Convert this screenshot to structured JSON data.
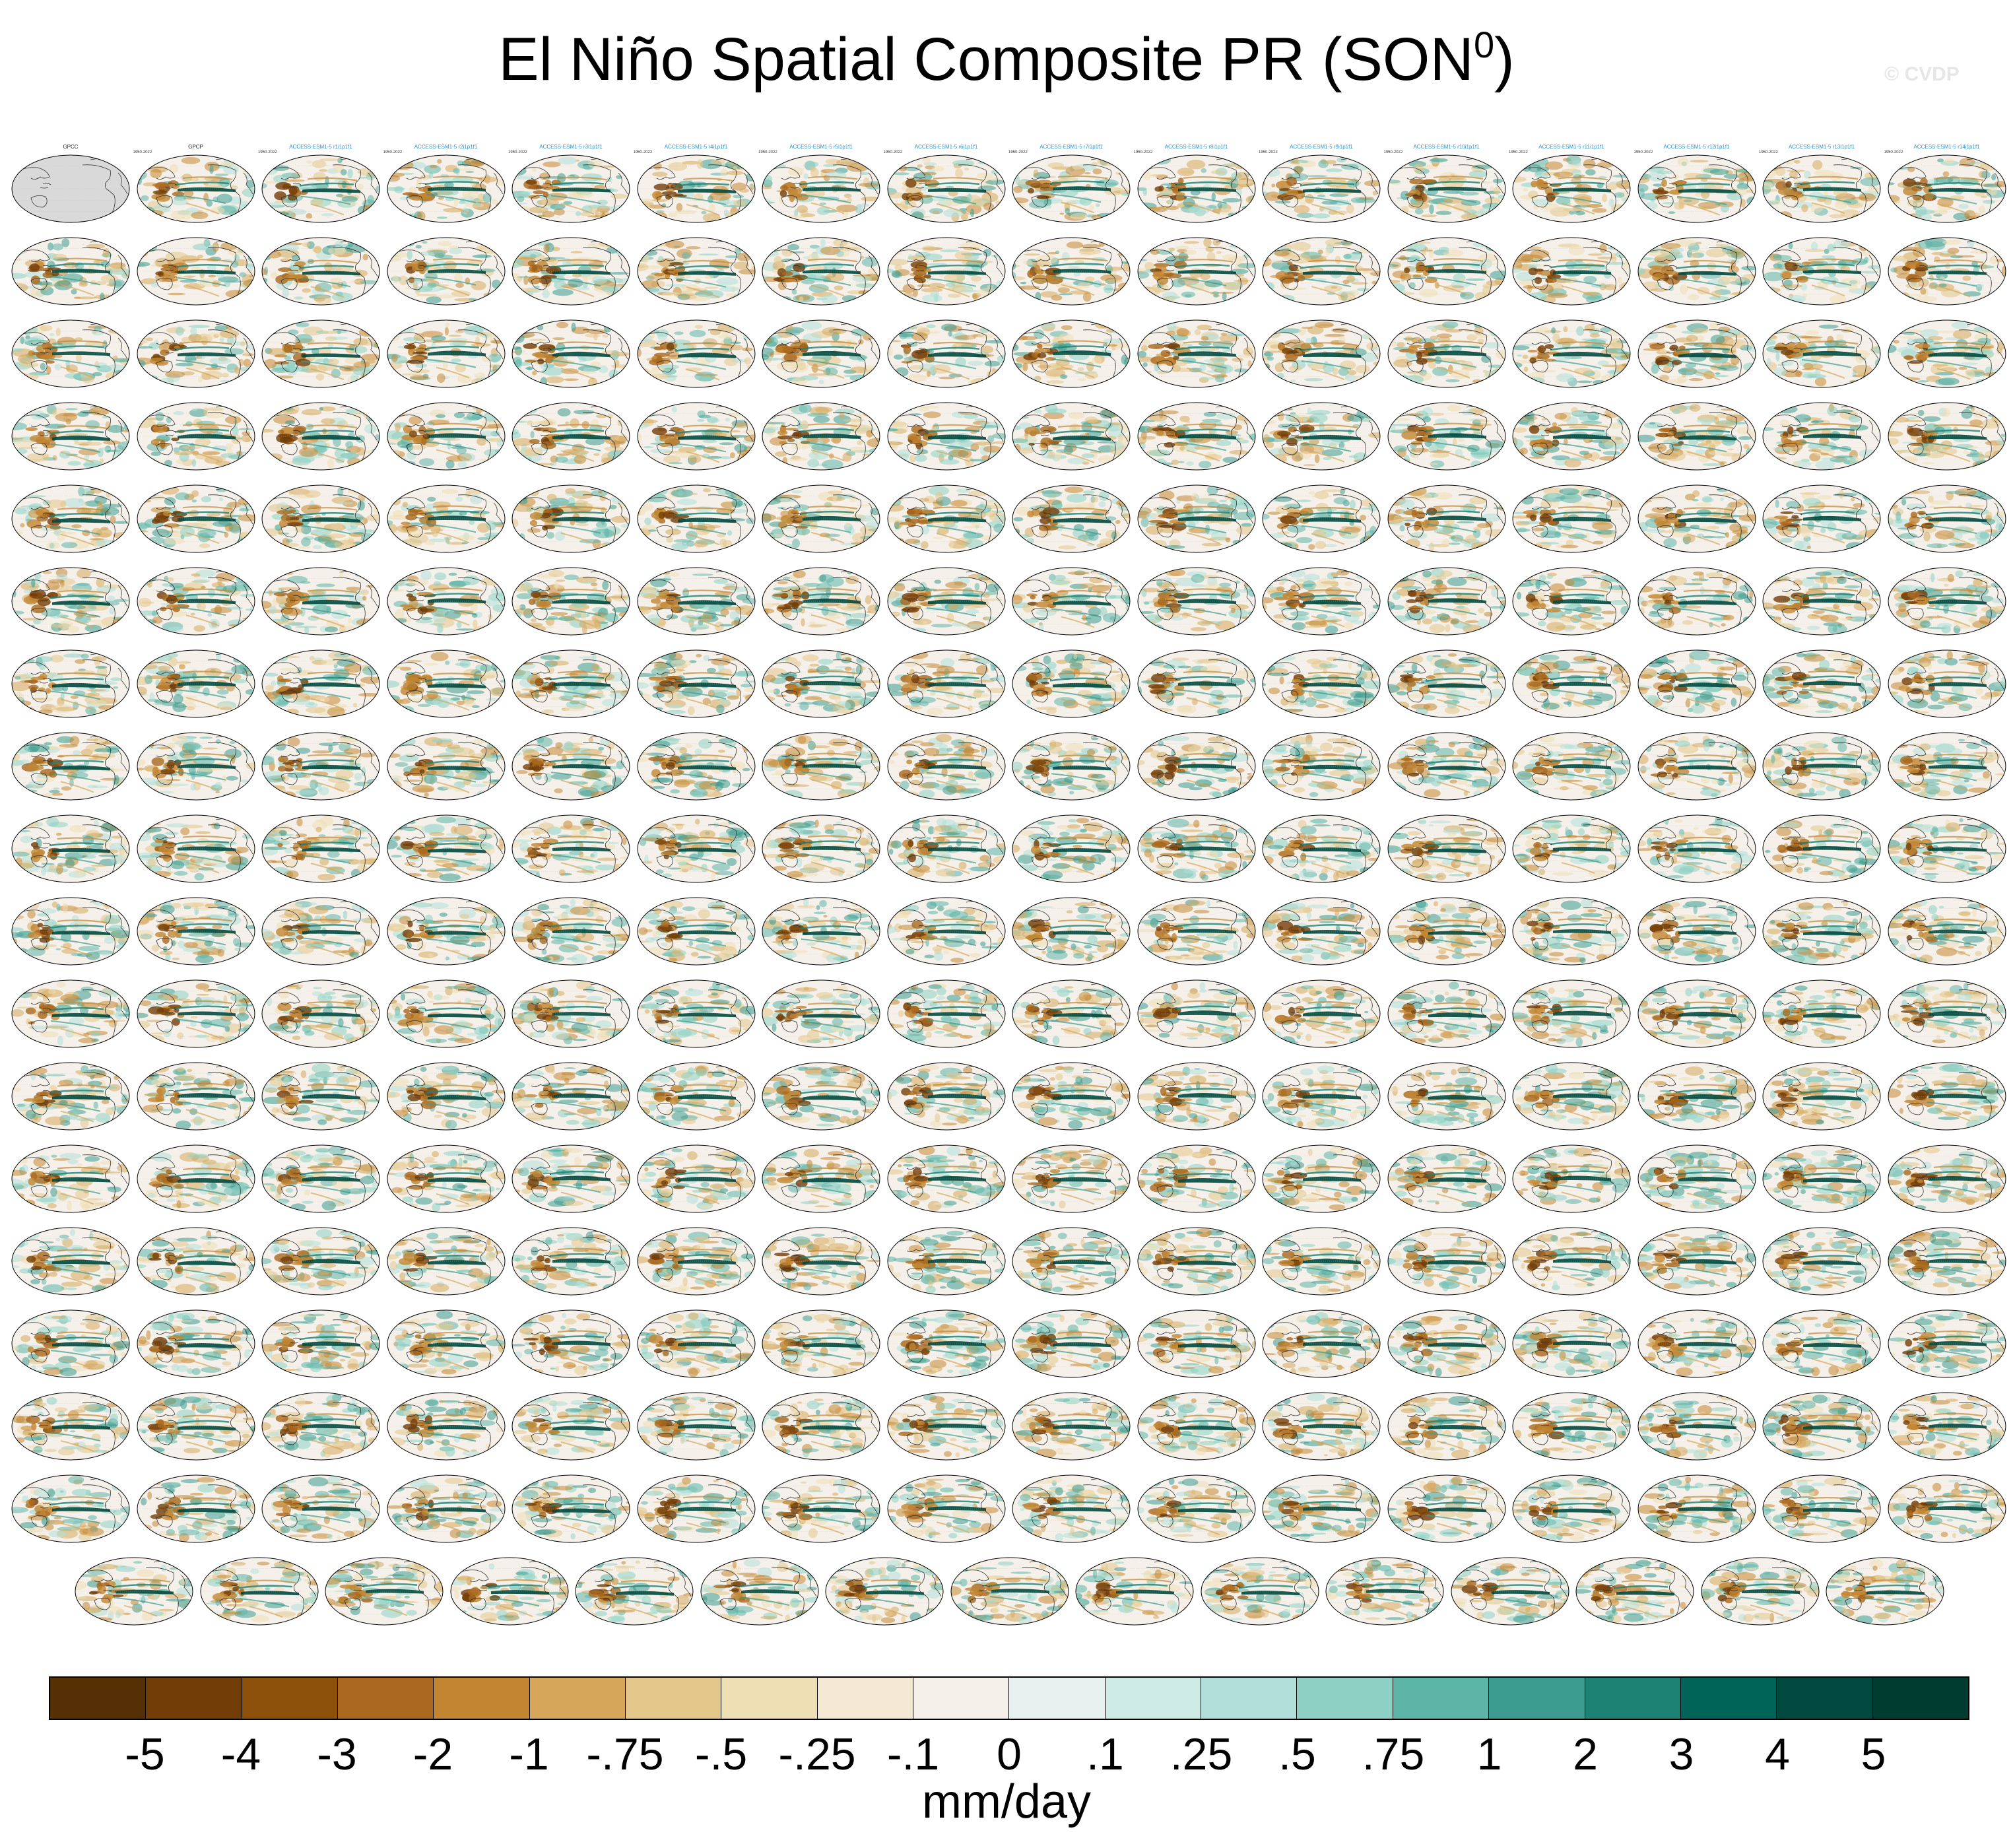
{
  "title": {
    "text": "El Niño Spatial Composite PR (SON",
    "superscript": "0",
    "suffix": ")"
  },
  "watermark": "© CVDP",
  "panel_title_colors": [
    "#222222",
    "#2a8fc9",
    "#8fb85a",
    "#c0392b",
    "#9b7fd4",
    "#e9b94f"
  ],
  "panels": [
    {
      "title": "GPCC",
      "years": "",
      "stats": "",
      "color_index": 0,
      "observational": true
    },
    {
      "title": "GPCP",
      "years": "1950-2022",
      "stats": "",
      "color_index": 0,
      "observational": false
    },
    {
      "title": "ACCESS-ESM1-5 r1i1p1f1",
      "years": "1950-2022",
      "stats": "",
      "color_index": 1
    },
    {
      "title": "ACCESS-ESM1-5 r2i1p1f1",
      "years": "1950-2022",
      "stats": "",
      "color_index": 1
    },
    {
      "title": "ACCESS-ESM1-5 r3i1p1f1",
      "years": "1950-2022",
      "stats": "",
      "color_index": 1
    },
    {
      "title": "ACCESS-ESM1-5 r4i1p1f1",
      "years": "1950-2022",
      "stats": "",
      "color_index": 1
    },
    {
      "title": "ACCESS-ESM1-5 r5i1p1f1",
      "years": "1950-2022",
      "stats": "",
      "color_index": 1
    },
    {
      "title": "ACCESS-ESM1-5 r6i1p1f1",
      "years": "1950-2022",
      "stats": "",
      "color_index": 1
    },
    {
      "title": "ACCESS-ESM1-5 r7i1p1f1",
      "years": "1950-2022",
      "stats": "",
      "color_index": 1
    },
    {
      "title": "ACCESS-ESM1-5 r8i1p1f1",
      "years": "1950-2022",
      "stats": "",
      "color_index": 1
    },
    {
      "title": "ACCESS-ESM1-5 r9i1p1f1",
      "years": "1950-2022",
      "stats": "",
      "color_index": 1
    },
    {
      "title": "ACCESS-ESM1-5 r10i1p1f1",
      "years": "1950-2022",
      "stats": "",
      "color_index": 1
    },
    {
      "title": "ACCESS-ESM1-5 r11i1p1f1",
      "years": "1950-2022",
      "stats": "",
      "color_index": 1
    },
    {
      "title": "ACCESS-ESM1-5 r12i1p1f1",
      "years": "1950-2022",
      "stats": "",
      "color_index": 1
    },
    {
      "title": "ACCESS-ESM1-5 r13i1p1f1",
      "years": "1950-2022",
      "stats": "",
      "color_index": 1
    },
    {
      "title": "ACCESS-ESM1-5 r14i1p1f1",
      "years": "1950-2022",
      "stats": "",
      "color_index": 1
    }
  ],
  "grid": {
    "rows": 18,
    "cols": 16,
    "last_row_count": 15
  },
  "colorbar": {
    "colors": [
      "#553005",
      "#733d08",
      "#8c500b",
      "#a9681d",
      "#c28632",
      "#d6a75b",
      "#e4c78a",
      "#efdfb5",
      "#f4ead3",
      "#f5f1ea",
      "#e8f1ef",
      "#cdeae5",
      "#b0e0d9",
      "#8dd1c5",
      "#5db5a8",
      "#3a9b8e",
      "#1d8174",
      "#016458",
      "#01493f",
      "#003c30"
    ],
    "tick_labels": [
      "-5",
      "-4",
      "-3",
      "-2",
      "-1",
      "-.75",
      "-.5",
      "-.25",
      "-.1",
      "0",
      ".1",
      ".25",
      ".5",
      ".75",
      "1",
      "2",
      "3",
      "4",
      "5"
    ],
    "units": "mm/day"
  }
}
